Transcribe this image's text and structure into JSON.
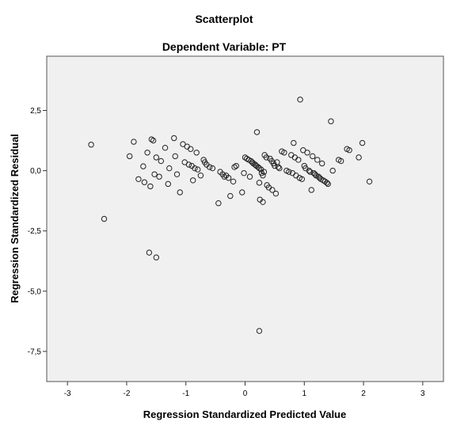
{
  "chart_data": {
    "type": "scatter",
    "title": "Scatterplot",
    "subtitle": "Dependent Variable: PT",
    "xlabel": "Regression Standardized Predicted Value",
    "ylabel": "Regression Standardized Residual",
    "xlim": [
      -3.35,
      3.35
    ],
    "ylim": [
      -8.75,
      4.75
    ],
    "x_ticks": [
      -3,
      -2,
      -1,
      0,
      1,
      2,
      3
    ],
    "x_tick_labels": [
      "-3",
      "-2",
      "-1",
      "0",
      "1",
      "2",
      "3"
    ],
    "y_ticks": [
      2.5,
      0.0,
      -2.5,
      -5.0,
      -7.5
    ],
    "y_tick_labels": [
      "2,5",
      "0,0",
      "-2,5",
      "-5,0",
      "-7,5"
    ],
    "grid": false,
    "colors": {
      "plot_background": "#f0f0f0",
      "marker_stroke": "#222222",
      "frame": "#555555"
    },
    "points": [
      {
        "x": -2.6,
        "y": 1.08
      },
      {
        "x": -2.38,
        "y": -2.0
      },
      {
        "x": -1.95,
        "y": 0.6
      },
      {
        "x": -1.88,
        "y": 1.2
      },
      {
        "x": -1.8,
        "y": -0.35
      },
      {
        "x": -1.72,
        "y": 0.18
      },
      {
        "x": -1.7,
        "y": -0.48
      },
      {
        "x": -1.65,
        "y": 0.75
      },
      {
        "x": -1.62,
        "y": -3.4
      },
      {
        "x": -1.6,
        "y": -0.65
      },
      {
        "x": -1.58,
        "y": 1.3
      },
      {
        "x": -1.55,
        "y": 1.25
      },
      {
        "x": -1.53,
        "y": -0.15
      },
      {
        "x": -1.5,
        "y": -3.6
      },
      {
        "x": -1.5,
        "y": 0.55
      },
      {
        "x": -1.45,
        "y": -0.25
      },
      {
        "x": -1.42,
        "y": 0.4
      },
      {
        "x": -1.35,
        "y": 0.95
      },
      {
        "x": -1.3,
        "y": -0.55
      },
      {
        "x": -1.28,
        "y": 0.1
      },
      {
        "x": -1.2,
        "y": 1.35
      },
      {
        "x": -1.18,
        "y": 0.6
      },
      {
        "x": -1.15,
        "y": -0.15
      },
      {
        "x": -1.1,
        "y": -0.9
      },
      {
        "x": -1.05,
        "y": 1.1
      },
      {
        "x": -1.02,
        "y": 0.35
      },
      {
        "x": -0.98,
        "y": 1.0
      },
      {
        "x": -0.95,
        "y": 0.25
      },
      {
        "x": -0.92,
        "y": 0.9
      },
      {
        "x": -0.9,
        "y": 0.2
      },
      {
        "x": -0.88,
        "y": -0.4
      },
      {
        "x": -0.85,
        "y": 0.1
      },
      {
        "x": -0.82,
        "y": 0.75
      },
      {
        "x": -0.8,
        "y": 0.05
      },
      {
        "x": -0.75,
        "y": -0.2
      },
      {
        "x": -0.7,
        "y": 0.45
      },
      {
        "x": -0.68,
        "y": 0.35
      },
      {
        "x": -0.65,
        "y": 0.25
      },
      {
        "x": -0.6,
        "y": 0.15
      },
      {
        "x": -0.55,
        "y": 0.1
      },
      {
        "x": -0.45,
        "y": -1.35
      },
      {
        "x": -0.42,
        "y": -0.05
      },
      {
        "x": -0.38,
        "y": -0.15
      },
      {
        "x": -0.35,
        "y": -0.25
      },
      {
        "x": -0.32,
        "y": -0.2
      },
      {
        "x": -0.28,
        "y": -0.3
      },
      {
        "x": -0.25,
        "y": -1.05
      },
      {
        "x": -0.2,
        "y": -0.45
      },
      {
        "x": -0.18,
        "y": 0.15
      },
      {
        "x": -0.15,
        "y": 0.2
      },
      {
        "x": -0.05,
        "y": -0.9
      },
      {
        "x": -0.02,
        "y": -0.1
      },
      {
        "x": 0.0,
        "y": 0.55
      },
      {
        "x": 0.03,
        "y": 0.5
      },
      {
        "x": 0.06,
        "y": 0.45
      },
      {
        "x": 0.08,
        "y": -0.25
      },
      {
        "x": 0.1,
        "y": 0.4
      },
      {
        "x": 0.12,
        "y": 0.35
      },
      {
        "x": 0.14,
        "y": 0.3
      },
      {
        "x": 0.17,
        "y": 0.25
      },
      {
        "x": 0.19,
        "y": 0.2
      },
      {
        "x": 0.2,
        "y": 1.6
      },
      {
        "x": 0.22,
        "y": 0.15
      },
      {
        "x": 0.24,
        "y": 0.1
      },
      {
        "x": 0.24,
        "y": -0.5
      },
      {
        "x": 0.24,
        "y": -6.65
      },
      {
        "x": 0.25,
        "y": -1.2
      },
      {
        "x": 0.27,
        "y": 0.05
      },
      {
        "x": 0.28,
        "y": -0.1
      },
      {
        "x": 0.3,
        "y": -0.2
      },
      {
        "x": 0.3,
        "y": -1.3
      },
      {
        "x": 0.32,
        "y": -0.05
      },
      {
        "x": 0.33,
        "y": 0.65
      },
      {
        "x": 0.36,
        "y": 0.55
      },
      {
        "x": 0.37,
        "y": -0.6
      },
      {
        "x": 0.4,
        "y": -0.7
      },
      {
        "x": 0.42,
        "y": 0.5
      },
      {
        "x": 0.45,
        "y": 0.4
      },
      {
        "x": 0.46,
        "y": -0.8
      },
      {
        "x": 0.48,
        "y": 0.3
      },
      {
        "x": 0.5,
        "y": 0.2
      },
      {
        "x": 0.52,
        "y": -0.95
      },
      {
        "x": 0.54,
        "y": 0.35
      },
      {
        "x": 0.56,
        "y": 0.15
      },
      {
        "x": 0.58,
        "y": 0.1
      },
      {
        "x": 0.62,
        "y": 0.8
      },
      {
        "x": 0.66,
        "y": 0.75
      },
      {
        "x": 0.7,
        "y": 0.0
      },
      {
        "x": 0.74,
        "y": -0.05
      },
      {
        "x": 0.78,
        "y": 0.65
      },
      {
        "x": 0.8,
        "y": -0.1
      },
      {
        "x": 0.82,
        "y": 1.15
      },
      {
        "x": 0.84,
        "y": 0.55
      },
      {
        "x": 0.86,
        "y": -0.2
      },
      {
        "x": 0.9,
        "y": 0.45
      },
      {
        "x": 0.92,
        "y": -0.3
      },
      {
        "x": 0.93,
        "y": 2.95
      },
      {
        "x": 0.96,
        "y": -0.35
      },
      {
        "x": 0.98,
        "y": 0.85
      },
      {
        "x": 1.0,
        "y": 0.2
      },
      {
        "x": 1.02,
        "y": 0.1
      },
      {
        "x": 1.05,
        "y": 0.75
      },
      {
        "x": 1.08,
        "y": 0.0
      },
      {
        "x": 1.1,
        "y": -0.05
      },
      {
        "x": 1.12,
        "y": -0.8
      },
      {
        "x": 1.14,
        "y": 0.6
      },
      {
        "x": 1.16,
        "y": -0.1
      },
      {
        "x": 1.18,
        "y": -0.15
      },
      {
        "x": 1.2,
        "y": -0.2
      },
      {
        "x": 1.22,
        "y": 0.45
      },
      {
        "x": 1.24,
        "y": -0.25
      },
      {
        "x": 1.26,
        "y": -0.3
      },
      {
        "x": 1.28,
        "y": -0.35
      },
      {
        "x": 1.3,
        "y": 0.3
      },
      {
        "x": 1.32,
        "y": -0.4
      },
      {
        "x": 1.35,
        "y": -0.45
      },
      {
        "x": 1.38,
        "y": -0.5
      },
      {
        "x": 1.4,
        "y": -0.55
      },
      {
        "x": 1.45,
        "y": 2.05
      },
      {
        "x": 1.48,
        "y": 0.0
      },
      {
        "x": 1.58,
        "y": 0.45
      },
      {
        "x": 1.62,
        "y": 0.4
      },
      {
        "x": 1.72,
        "y": 0.9
      },
      {
        "x": 1.76,
        "y": 0.85
      },
      {
        "x": 1.92,
        "y": 0.55
      },
      {
        "x": 1.98,
        "y": 1.15
      },
      {
        "x": 2.1,
        "y": -0.45
      }
    ]
  }
}
